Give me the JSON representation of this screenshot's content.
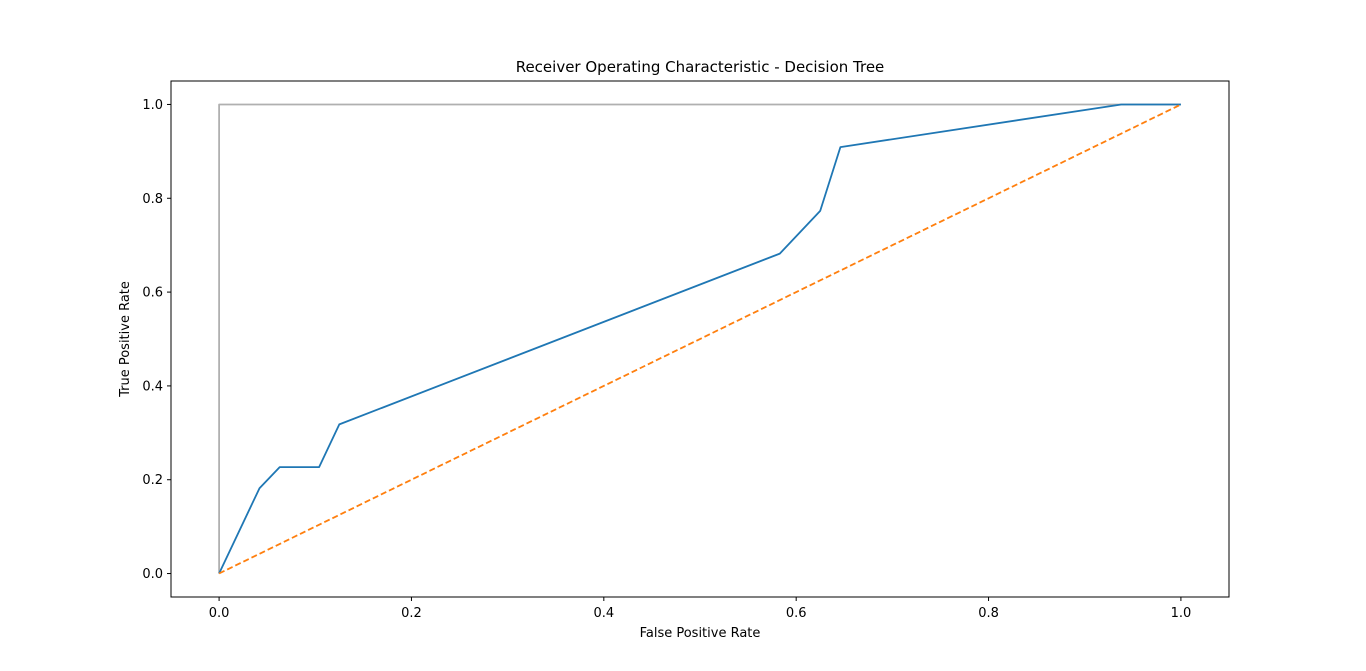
{
  "chart_data": {
    "type": "line",
    "title": "Receiver Operating Characteristic - Decision Tree",
    "xlabel": "False Positive Rate",
    "ylabel": "True Positive Rate",
    "xlim": [
      -0.05,
      1.05
    ],
    "ylim": [
      -0.05,
      1.05
    ],
    "xticks": [
      0.0,
      0.2,
      0.4,
      0.6,
      0.8,
      1.0
    ],
    "yticks": [
      0.0,
      0.2,
      0.4,
      0.6,
      0.8,
      1.0
    ],
    "xtick_labels": [
      "0.0",
      "0.2",
      "0.4",
      "0.6",
      "0.8",
      "1.0"
    ],
    "ytick_labels": [
      "0.0",
      "0.2",
      "0.4",
      "0.6",
      "0.8",
      "1.0"
    ],
    "grid": false,
    "legend": "none",
    "series": [
      {
        "key": "roc",
        "color": "#1f77b4",
        "style": "solid",
        "x": [
          0.0,
          0.042,
          0.063,
          0.104,
          0.125,
          0.583,
          0.625,
          0.646,
          0.938,
          1.0
        ],
        "y": [
          0.0,
          0.182,
          0.227,
          0.227,
          0.318,
          0.682,
          0.773,
          0.909,
          1.0,
          1.0
        ]
      },
      {
        "key": "chance",
        "color": "#ff7f0e",
        "style": "dashed",
        "x": [
          0.0,
          1.0
        ],
        "y": [
          0.0,
          1.0
        ]
      },
      {
        "key": "perfect",
        "color": "#b0b0b0",
        "style": "solid",
        "x": [
          0.0,
          0.0,
          1.0
        ],
        "y": [
          0.0,
          1.0,
          1.0
        ]
      }
    ]
  }
}
